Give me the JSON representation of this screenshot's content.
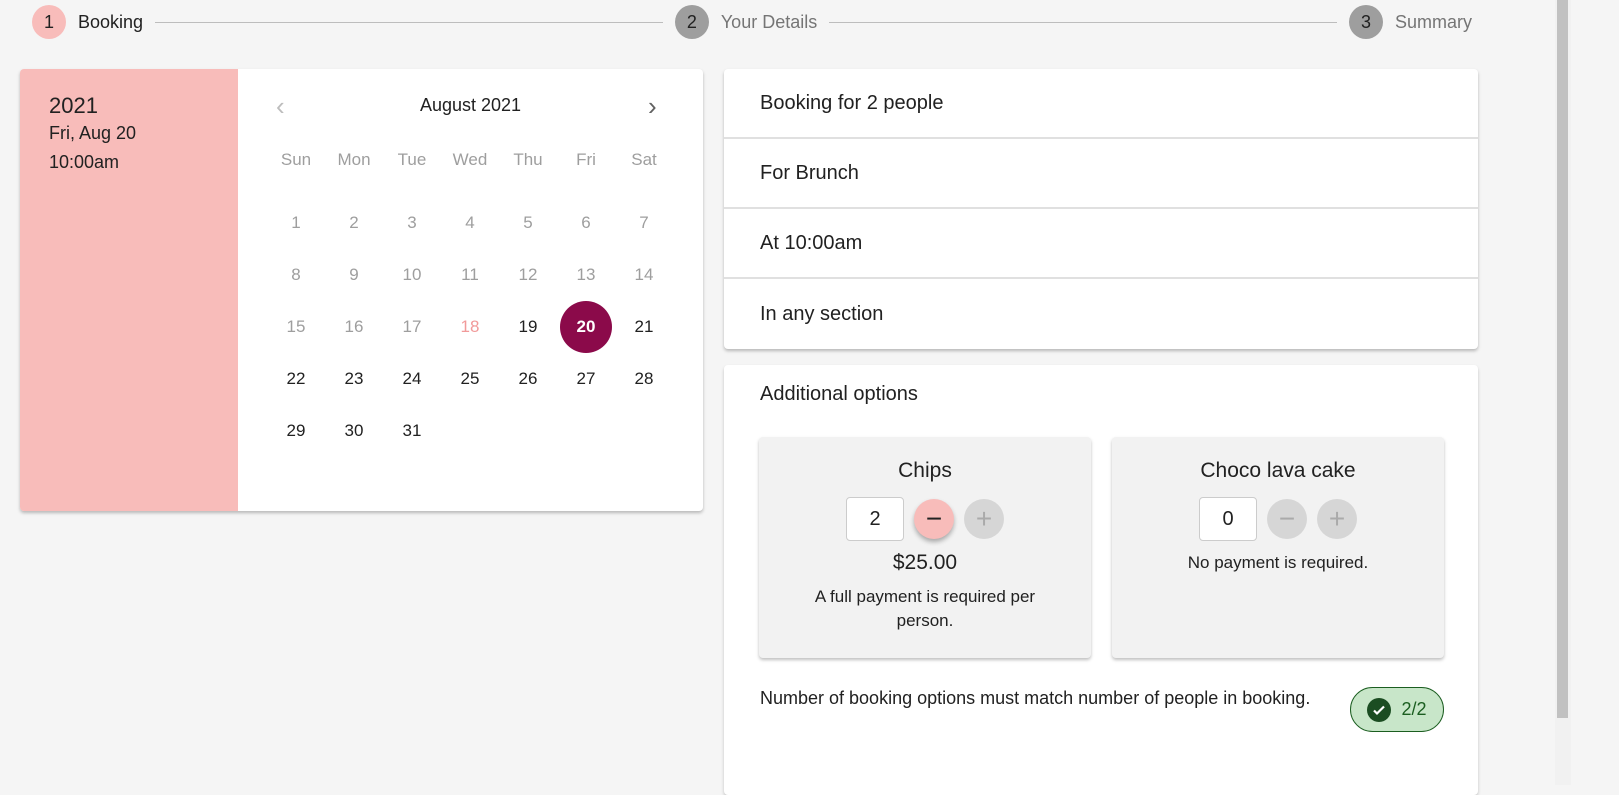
{
  "stepper": [
    {
      "num": "1",
      "label": "Booking"
    },
    {
      "num": "2",
      "label": "Your Details"
    },
    {
      "num": "3",
      "label": "Summary"
    }
  ],
  "calendar": {
    "year": "2021",
    "date": "Fri, Aug 20",
    "time": "10:00am",
    "month": "August 2021",
    "weekdays": [
      "Sun",
      "Mon",
      "Tue",
      "Wed",
      "Thu",
      "Fri",
      "Sat"
    ],
    "days_in_month": 31,
    "first_weekday": 0,
    "disabled_before": 19,
    "today": 18,
    "selected": 20,
    "selected_color": "#8b0a4a"
  },
  "info": [
    "Booking for 2 people",
    "For Brunch",
    "At 10:00am",
    "In any section"
  ],
  "options": {
    "title": "Additional options",
    "items": [
      {
        "name": "Chips",
        "qty": "2",
        "price": "$25.00",
        "note": "A full payment is required per person.",
        "minus_enabled": true
      },
      {
        "name": "Choco lava cake",
        "qty": "0",
        "price": "",
        "note": "No payment is required.",
        "minus_enabled": false
      }
    ],
    "rule": "Number of booking options must match number of people in booking.",
    "badge": "2/2"
  }
}
